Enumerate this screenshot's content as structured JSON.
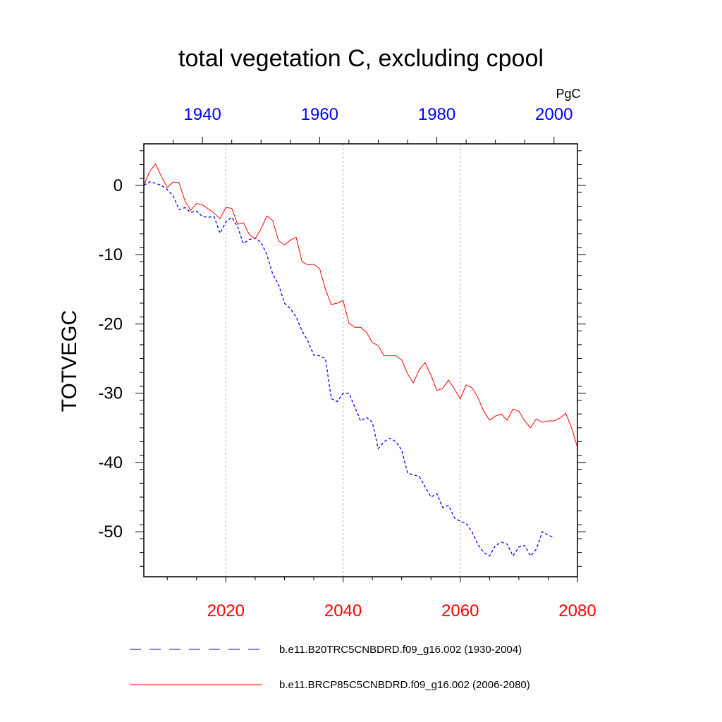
{
  "chart_data": {
    "type": "line",
    "title": "total vegetation C, excluding cpool",
    "ylabel": "TOTVEGC",
    "units": "PgC",
    "ylim": [
      -56.5,
      6
    ],
    "yticks": [
      0,
      -10,
      -20,
      -30,
      -40,
      -50
    ],
    "ytick_labels": [
      "0",
      "-10",
      "-20",
      "-30",
      "-40",
      "-50"
    ],
    "x_bottom": {
      "range": [
        2006,
        2080
      ],
      "ticks": [
        2020,
        2040,
        2060,
        2080
      ],
      "tick_labels": [
        "2020",
        "2040",
        "2060",
        "2080"
      ],
      "color": "#ff0000"
    },
    "x_top": {
      "range": [
        1930,
        2004
      ],
      "ticks": [
        1940,
        1960,
        1980,
        2000
      ],
      "tick_labels": [
        "1940",
        "1960",
        "1980",
        "2000"
      ],
      "color": "#0000ff"
    },
    "gridlines_x": [
      2020,
      2040,
      2060
    ],
    "series": [
      {
        "name": "b.e11.B20TRC5CNBDRD.f09_g16.002 (1930-2004)",
        "axis": "top",
        "color": "#0000ff",
        "style": "dashed",
        "x_start": 1930,
        "values": [
          0.0,
          0.5,
          0.3,
          0.0,
          -0.6,
          -1.5,
          -3.5,
          -3.2,
          -3.9,
          -3.7,
          -4.5,
          -4.6,
          -4.5,
          -6.9,
          -5.3,
          -4.6,
          -6.0,
          -8.4,
          -7.8,
          -7.6,
          -8.2,
          -10.0,
          -12.8,
          -14.3,
          -17.0,
          -17.8,
          -19.0,
          -21.0,
          -22.5,
          -24.5,
          -24.6,
          -25.0,
          -30.8,
          -31.2,
          -30.0,
          -30.0,
          -32.0,
          -34.0,
          -33.5,
          -34.2,
          -38.0,
          -37.0,
          -36.5,
          -37.0,
          -38.2,
          -41.5,
          -41.8,
          -42.0,
          -43.5,
          -45.0,
          -44.5,
          -46.5,
          -46.2,
          -48.0,
          -48.5,
          -48.8,
          -50.0,
          -51.8,
          -53.0,
          -53.5,
          -52.0,
          -51.5,
          -51.8,
          -53.5,
          -52.2,
          -52.0,
          -53.5,
          -52.5,
          -50.0,
          -50.5,
          -50.8
        ]
      },
      {
        "name": "b.e11.BRCP85C5CNBDRD.f09_g16.002 (2006-2080)",
        "axis": "bottom",
        "color": "#ff0000",
        "style": "solid",
        "x_start": 2006,
        "values": [
          0.0,
          2.0,
          3.1,
          1.3,
          -0.3,
          0.5,
          0.4,
          -2.2,
          -3.6,
          -2.6,
          -2.8,
          -3.4,
          -4.0,
          -4.8,
          -3.2,
          -3.3,
          -5.6,
          -5.4,
          -7.1,
          -7.7,
          -6.3,
          -4.4,
          -5.1,
          -8.0,
          -8.6,
          -7.9,
          -7.5,
          -11.0,
          -11.5,
          -11.4,
          -12.0,
          -15.0,
          -17.2,
          -17.0,
          -16.6,
          -19.9,
          -20.5,
          -20.5,
          -21.2,
          -22.7,
          -23.1,
          -24.6,
          -24.6,
          -24.6,
          -25.2,
          -27.2,
          -28.5,
          -26.6,
          -25.6,
          -27.4,
          -29.6,
          -29.3,
          -28.1,
          -29.4,
          -30.8,
          -28.8,
          -29.2,
          -30.6,
          -32.6,
          -33.9,
          -33.3,
          -33.0,
          -33.9,
          -32.3,
          -32.6,
          -34.0,
          -35.0,
          -33.7,
          -34.2,
          -34.0,
          -34.0,
          -33.6,
          -32.9,
          -35.0,
          -37.8
        ]
      }
    ]
  }
}
